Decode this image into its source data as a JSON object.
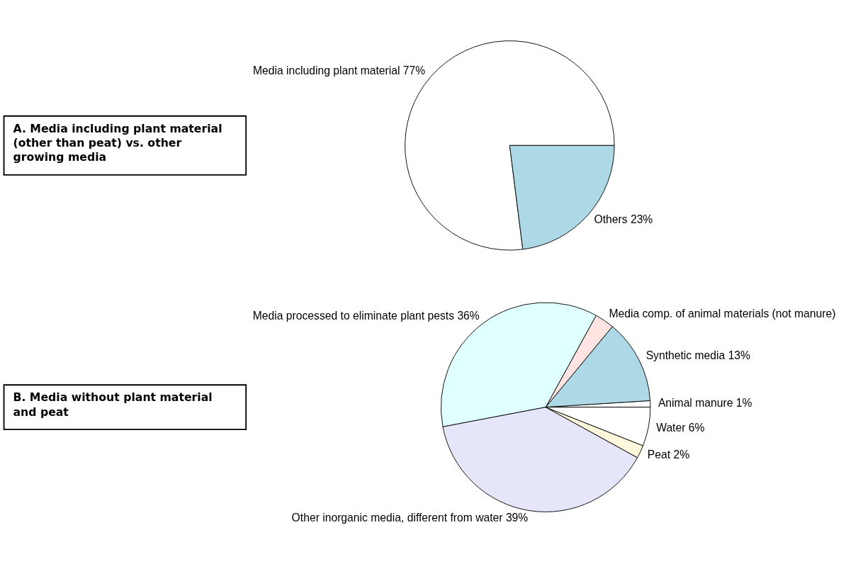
{
  "chart_data": [
    {
      "type": "pie",
      "title": "A. Media including plant material (other than peat) vs. other growing media",
      "categories": [
        "Media including plant material",
        "Others"
      ],
      "values": [
        77,
        23
      ],
      "colors": [
        "#ffffff",
        "#add8e6"
      ],
      "value_labels": [
        "77%",
        "23%"
      ]
    },
    {
      "type": "pie",
      "title": "B. Media without plant material and peat",
      "categories": [
        "Animal manure",
        "Synthetic media",
        "Media comp. of animal materials (not manure)",
        "Media processed to eliminate plant pests",
        "Other inorganic media, different from water",
        "Peat",
        "Water"
      ],
      "values": [
        1,
        13,
        3,
        36,
        39,
        2,
        6
      ],
      "colors": [
        "#ffffff",
        "#add8e6",
        "#ffe4e1",
        "#e0ffff",
        "#e6e6fa",
        "#fff8dc",
        "#ffffff"
      ],
      "value_labels": [
        "1%",
        "13%",
        null,
        "36%",
        "39%",
        "2%",
        "6%"
      ]
    }
  ]
}
